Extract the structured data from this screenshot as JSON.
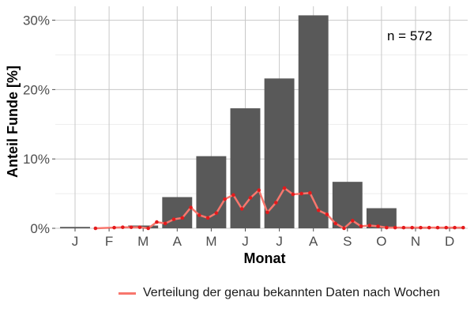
{
  "chart_data": {
    "type": "bar",
    "categories": [
      "J",
      "F",
      "M",
      "A",
      "M",
      "J",
      "J",
      "A",
      "S",
      "O",
      "N",
      "D"
    ],
    "values": [
      0.2,
      0.1,
      0.4,
      4.5,
      10.4,
      17.3,
      21.6,
      30.7,
      6.7,
      2.9,
      0.0,
      0.0
    ],
    "xlabel": "Monat",
    "ylabel": "Anteil Funde [%]",
    "ylim": [
      0,
      32
    ],
    "yticks": [
      0,
      10,
      20,
      30
    ],
    "ytick_labels": [
      "0%",
      "10%",
      "20%",
      "30%"
    ],
    "grid": true,
    "annotation": "n = 572",
    "bar_color": "#595959",
    "weekly_series": {
      "name": "Verteilung der genau bekannten Daten nach Wochen",
      "color": "#f8766d",
      "point_color": "#e41a1c",
      "x": [
        1.6,
        2.15,
        2.4,
        2.65,
        2.9,
        3.15,
        3.4,
        3.65,
        3.9,
        4.15,
        4.4,
        4.65,
        4.9,
        5.15,
        5.4,
        5.65,
        5.9,
        6.15,
        6.4,
        6.65,
        6.9,
        7.15,
        7.4,
        7.65,
        7.9,
        8.15,
        8.4,
        8.65,
        8.9,
        9.15,
        9.4,
        9.65,
        9.9,
        10.15,
        10.4,
        10.65,
        10.9,
        11.15,
        11.4,
        11.65,
        11.9,
        12.15,
        12.4
      ],
      "y": [
        0.0,
        0.1,
        0.15,
        0.15,
        0.15,
        0.0,
        0.9,
        0.7,
        1.3,
        1.5,
        3.0,
        1.9,
        1.5,
        2.2,
        4.2,
        4.8,
        2.8,
        4.4,
        5.5,
        2.3,
        3.7,
        5.8,
        4.9,
        5.0,
        5.1,
        2.6,
        2.0,
        0.7,
        0.0,
        1.1,
        0.3,
        0.4,
        0.3,
        0.1,
        0.1,
        0.1,
        0.1,
        0.1,
        0.1,
        0.1,
        0.1,
        0.1,
        0.1
      ]
    }
  }
}
